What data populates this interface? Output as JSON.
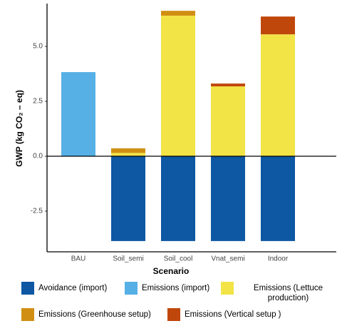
{
  "chart_data": {
    "type": "stacked-bar",
    "xlabel": "Scenario",
    "ylabel": "GWP (kg CO₂ – eq)",
    "categories": [
      "BAU",
      "Soil_semi",
      "Soil_cool",
      "Vnat_semi",
      "Indoor"
    ],
    "series": [
      {
        "name": "Avoidance (import)",
        "color": "#0d57a3",
        "values": [
          null,
          -3.86,
          -3.86,
          -3.86,
          -3.86
        ]
      },
      {
        "name": "Emissions (import)",
        "color": "#56b0e6",
        "values": [
          3.83,
          null,
          null,
          null,
          null
        ]
      },
      {
        "name": "Emissions (Lettuce production)",
        "color": "#f2e446",
        "values": [
          null,
          0.15,
          6.4,
          3.18,
          5.55
        ]
      },
      {
        "name": "Emissions (Greenhouse setup)",
        "color": "#d08f12",
        "values": [
          null,
          0.21,
          0.22,
          null,
          null
        ]
      },
      {
        "name": "Emissions (Vertical setup )",
        "color": "#c0470c",
        "values": [
          null,
          null,
          null,
          0.13,
          0.81
        ]
      }
    ],
    "ylim": [
      -4.35,
      6.95
    ],
    "yticks": [
      -2.5,
      {
        "value": 0,
        "label": "0.0"
      },
      2.5,
      {
        "value": 5,
        "label": "5.0"
      }
    ],
    "grid": false
  }
}
